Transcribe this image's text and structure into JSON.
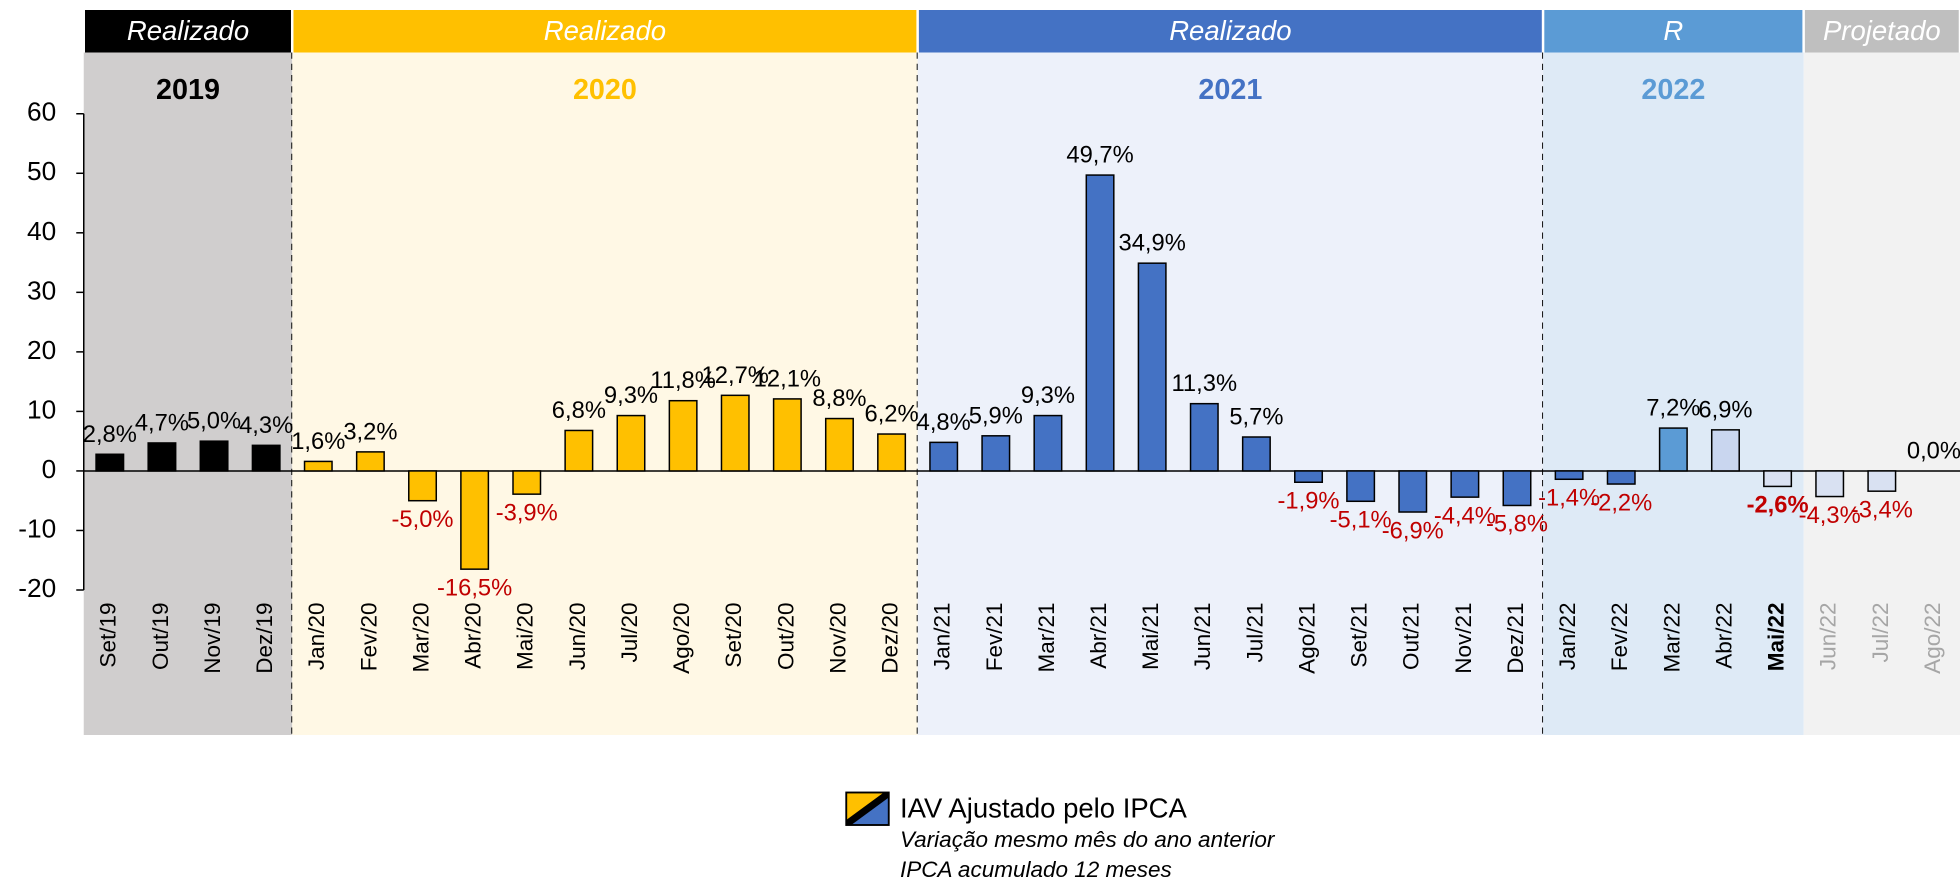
{
  "chart_data": {
    "type": "bar",
    "categories": [
      "Set/19",
      "Out/19",
      "Nov/19",
      "Dez/19",
      "Jan/20",
      "Fev/20",
      "Mar/20",
      "Abr/20",
      "Mai/20",
      "Jun/20",
      "Jul/20",
      "Ago/20",
      "Set/20",
      "Out/20",
      "Nov/20",
      "Dez/20",
      "Jan/21",
      "Fev/21",
      "Mar/21",
      "Abr/21",
      "Mai/21",
      "Jun/21",
      "Jul/21",
      "Ago/21",
      "Set/21",
      "Out/21",
      "Nov/21",
      "Dez/21",
      "Jan/22",
      "Fev/22",
      "Mar/22",
      "Abr/22",
      "Mai/22",
      "Jun/22",
      "Jul/22",
      "Ago/22"
    ],
    "values": [
      2.8,
      4.7,
      5.0,
      4.3,
      1.6,
      3.2,
      -5.0,
      -16.5,
      -3.9,
      6.8,
      9.3,
      11.8,
      12.7,
      12.1,
      8.8,
      6.2,
      4.8,
      5.9,
      9.3,
      49.7,
      34.9,
      11.3,
      5.7,
      -1.9,
      -5.1,
      -6.9,
      -4.4,
      -5.8,
      -1.4,
      -2.2,
      7.2,
      6.9,
      -2.6,
      -4.3,
      -3.4,
      0.0
    ],
    "value_labels": [
      "2,8%",
      "4,7%",
      "5,0%",
      "4,3%",
      "1,6%",
      "3,2%",
      "-5,0%",
      "-16,5%",
      "-3,9%",
      "6,8%",
      "9,3%",
      "11,8%",
      "12,7%",
      "12,1%",
      "8,8%",
      "6,2%",
      "4,8%",
      "5,9%",
      "9,3%",
      "49,7%",
      "34,9%",
      "11,3%",
      "5,7%",
      "-1,9%",
      "-5,1%",
      "-6,9%",
      "-4,4%",
      "-5,8%",
      "-1,4%",
      "-2,2%",
      "7,2%",
      "6,9%",
      "-2,6%",
      "-4,3%",
      "-3,4%",
      "0,0%"
    ],
    "colors": [
      "#000000",
      "#000000",
      "#000000",
      "#000000",
      "#FFC000",
      "#FFC000",
      "#FFC000",
      "#FFC000",
      "#FFC000",
      "#FFC000",
      "#FFC000",
      "#FFC000",
      "#FFC000",
      "#FFC000",
      "#FFC000",
      "#FFC000",
      "#4472C4",
      "#4472C4",
      "#4472C4",
      "#4472C4",
      "#4472C4",
      "#4472C4",
      "#4472C4",
      "#4472C4",
      "#4472C4",
      "#4472C4",
      "#4472C4",
      "#4472C4",
      "#4472C4",
      "#4472C4",
      "#5B9BD5",
      "#C9D6EF",
      "#D9E1F2",
      "#D9E1F2",
      "#D9E1F2",
      "#D9E1F2"
    ],
    "current": 32,
    "ylim": [
      -20,
      60
    ],
    "yticks": [
      -20,
      -10,
      0,
      10,
      20,
      30,
      40,
      50,
      60
    ],
    "sections": [
      {
        "header": "Realizado",
        "year": "2019",
        "span": 4,
        "header_color": "#000000",
        "background": "#D0CECE",
        "year_color": "#000000"
      },
      {
        "header": "Realizado",
        "year": "2020",
        "span": 12,
        "header_color": "#FFC000",
        "background": "#FFF8E5",
        "year_color": "#FFC000"
      },
      {
        "header": "Realizado",
        "year": "2021",
        "span": 12,
        "header_color": "#4472C4",
        "background": "#EDF1FA",
        "year_color": "#4472C4"
      },
      {
        "header": "R",
        "year": "2022",
        "span": 5,
        "header_color": "#5B9BD5",
        "background": "#DEEAF6",
        "year_color": "#5B9BD5"
      },
      {
        "header": "Projetado",
        "span": 3,
        "header_color": "#BFBFBF",
        "background": "#F2F2F2",
        "muted": true
      }
    ],
    "legend": {
      "name": "IAV Ajustado pelo IPCA",
      "notes": [
        "Variação mesmo mês do ano anterior",
        "IPCA acumulado 12 meses"
      ]
    }
  }
}
